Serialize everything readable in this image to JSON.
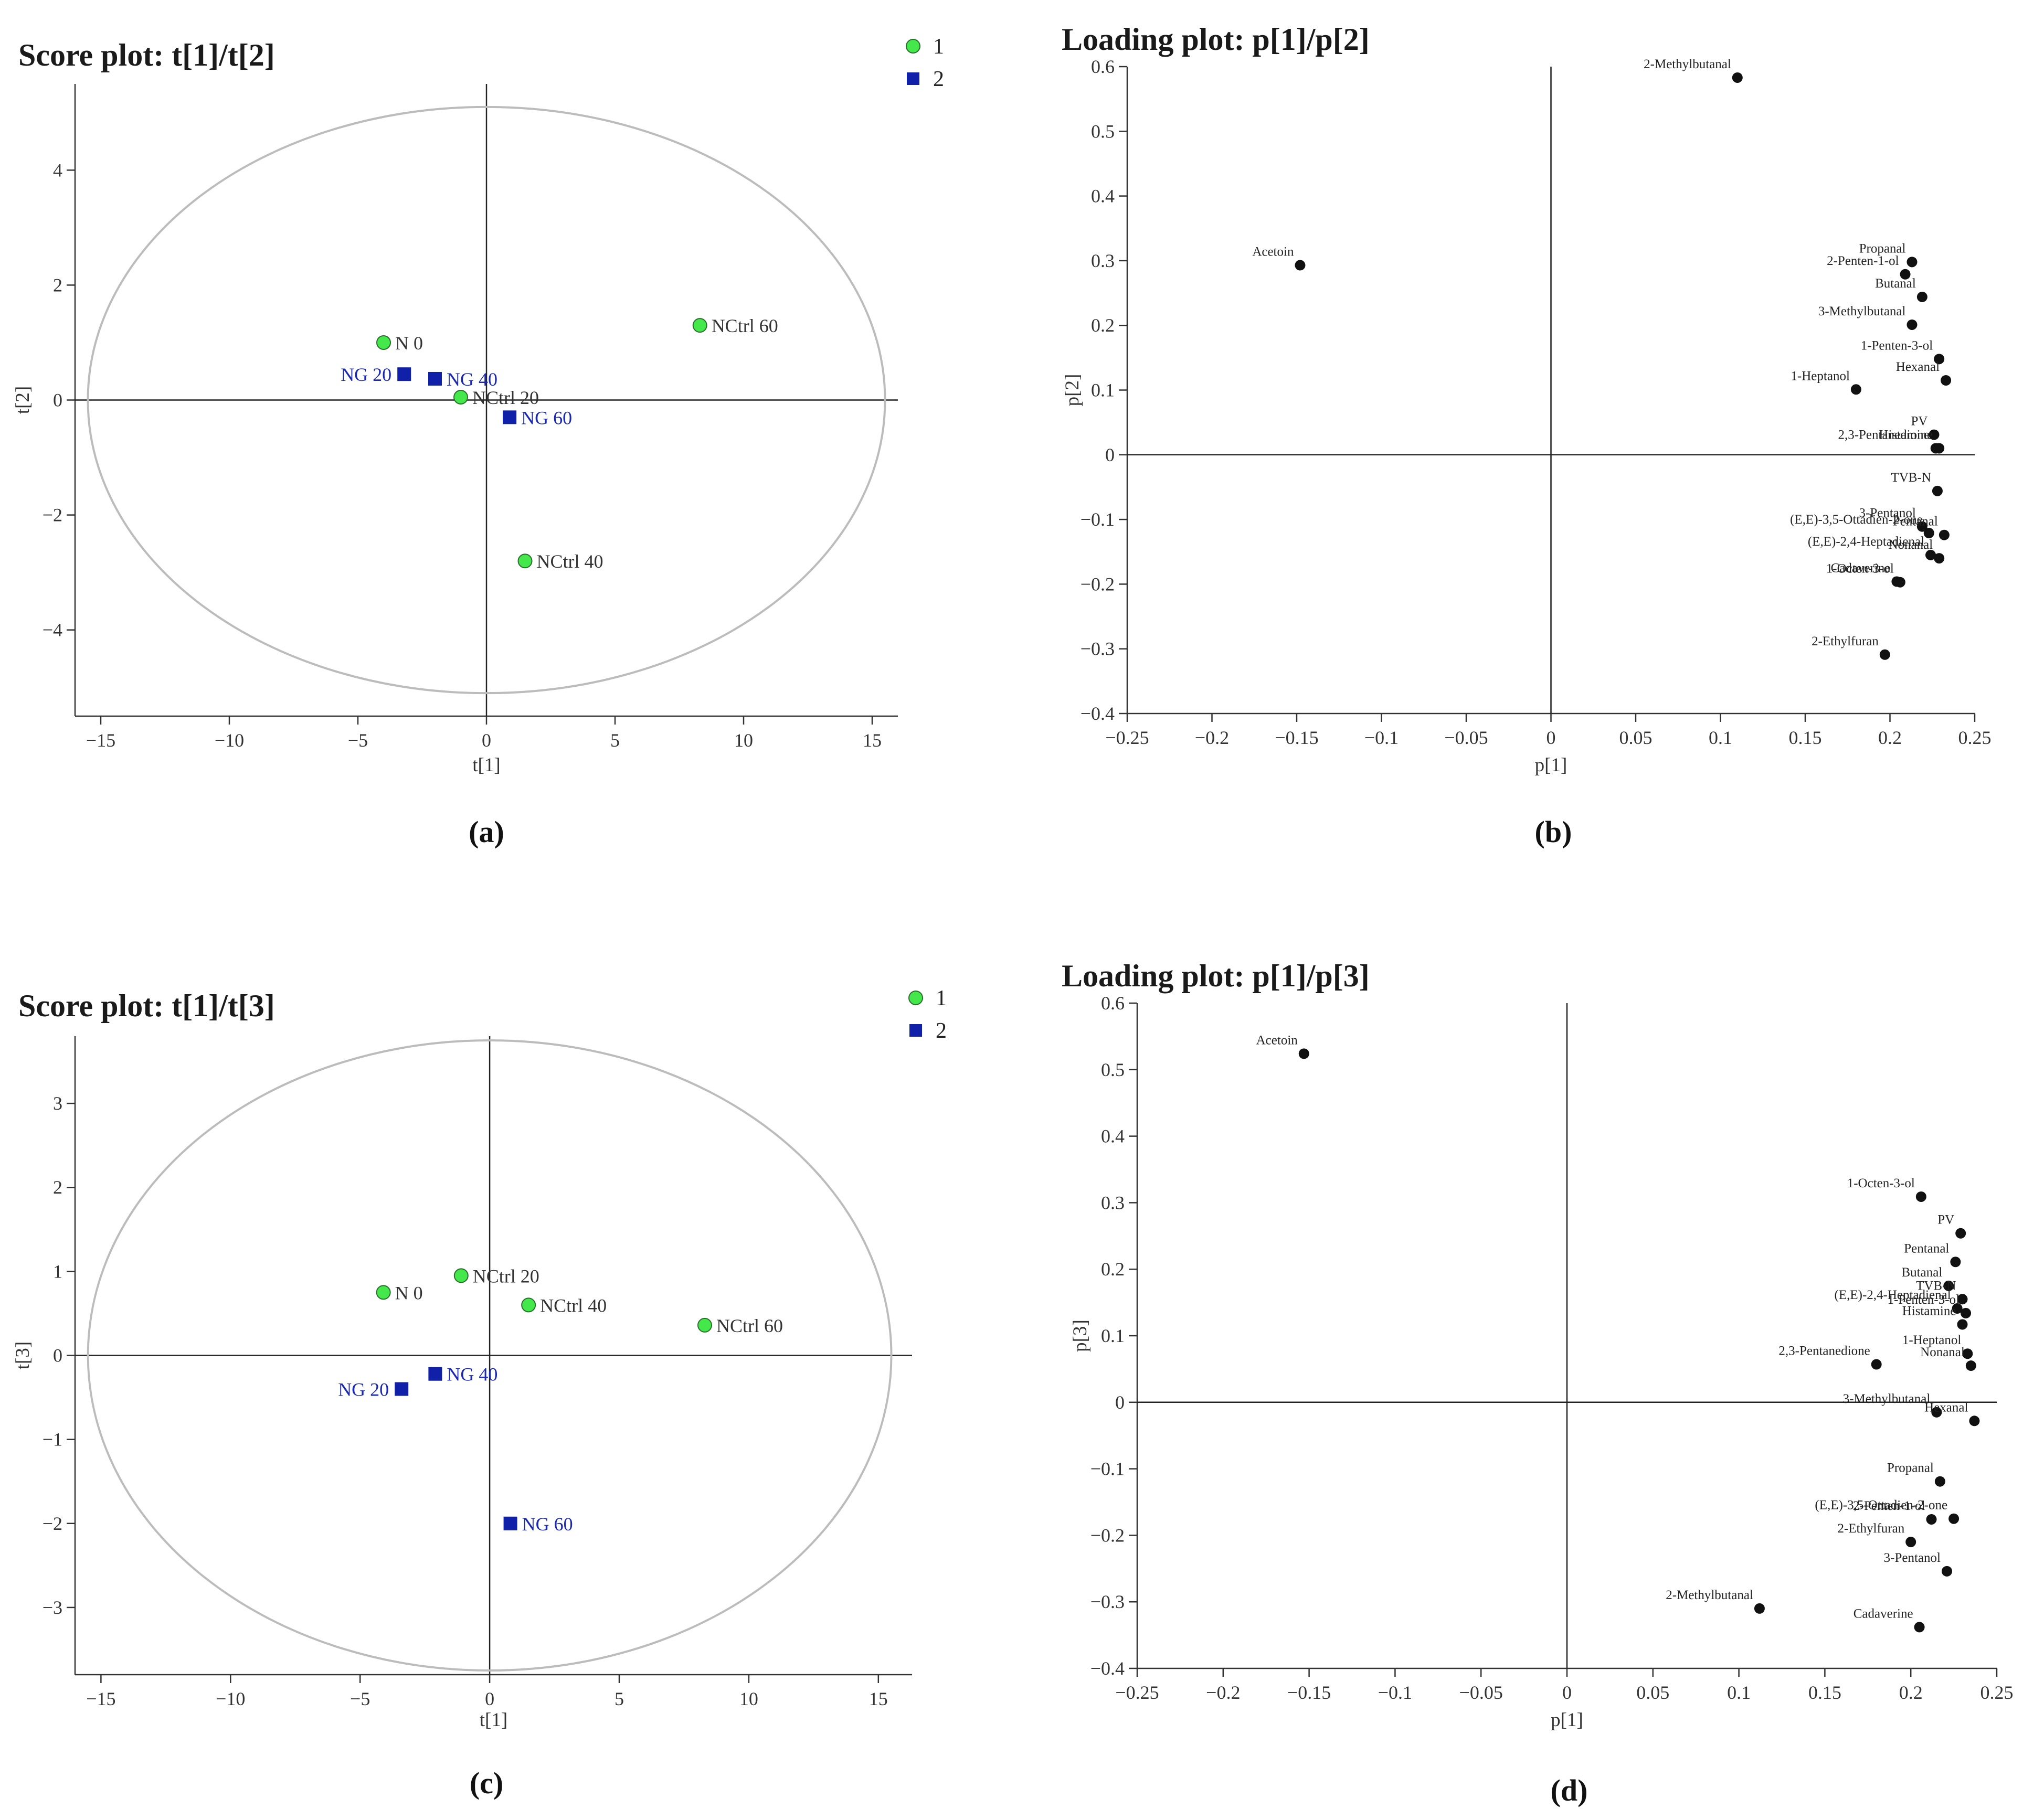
{
  "chart_data": [
    {
      "type": "scatter",
      "panel_label": "(a)",
      "title": "Score plot: t[1]/t[2]",
      "xlabel": "t[1]",
      "ylabel": "t[2]",
      "xlim": [
        -16,
        16
      ],
      "ylim": [
        -5.5,
        5.5
      ],
      "xticks": [
        -15,
        -10,
        -5,
        0,
        5,
        10,
        15
      ],
      "yticks": [
        -4,
        -2,
        0,
        2,
        4
      ],
      "ellipse": {
        "rx": 15.5,
        "ry": 5.1
      },
      "legend": {
        "position": "top-right",
        "entries": [
          "1",
          "2"
        ]
      },
      "series": [
        {
          "name": "1",
          "marker": "circle",
          "color": "#44e84a",
          "points": [
            {
              "label": "N   0",
              "x": -4.0,
              "y": 1.0
            },
            {
              "label": "NCtrl 20",
              "x": -1.0,
              "y": 0.05
            },
            {
              "label": "NCtrl 40",
              "x": 1.5,
              "y": -2.8
            },
            {
              "label": "NCtrl 60",
              "x": 8.3,
              "y": 1.3
            }
          ]
        },
        {
          "name": "2",
          "marker": "square",
          "color": "#1020a8",
          "points": [
            {
              "label": "NG  20",
              "x": -3.2,
              "y": 0.45
            },
            {
              "label": "NG  40",
              "x": -2.0,
              "y": 0.37
            },
            {
              "label": "NG  60",
              "x": 0.9,
              "y": -0.3
            }
          ]
        }
      ]
    },
    {
      "type": "scatter",
      "panel_label": "(b)",
      "title": "Loading plot: p[1]/p[2]",
      "xlabel": "p[1]",
      "ylabel": "p[2]",
      "xlim": [
        -0.25,
        0.25
      ],
      "ylim": [
        -0.4,
        0.6
      ],
      "xticks": [
        -0.25,
        -0.2,
        -0.15,
        -0.1,
        -0.05,
        0,
        0.05,
        0.1,
        0.15,
        0.2,
        0.25
      ],
      "yticks": [
        -0.4,
        -0.3,
        -0.2,
        -0.1,
        0,
        0.1,
        0.2,
        0.3,
        0.4,
        0.5,
        0.6
      ],
      "points": [
        {
          "label": "2-Methylbutanal",
          "x": 0.11,
          "y": 0.583
        },
        {
          "label": "Acetoin",
          "x": -0.148,
          "y": 0.293
        },
        {
          "label": "Propanal",
          "x": 0.213,
          "y": 0.298
        },
        {
          "label": "2-Penten-1-ol",
          "x": 0.209,
          "y": 0.279
        },
        {
          "label": "Butanal",
          "x": 0.219,
          "y": 0.244
        },
        {
          "label": "3-Methylbutanal",
          "x": 0.213,
          "y": 0.201
        },
        {
          "label": "1-Penten-3-ol",
          "x": 0.229,
          "y": 0.148
        },
        {
          "label": "Hexanal",
          "x": 0.233,
          "y": 0.115
        },
        {
          "label": "1-Heptanol",
          "x": 0.18,
          "y": 0.101
        },
        {
          "label": "PV",
          "x": 0.226,
          "y": 0.031
        },
        {
          "label": "Histamine",
          "x": 0.229,
          "y": 0.01
        },
        {
          "label": "2,3-Pentanedione",
          "x": 0.227,
          "y": 0.01
        },
        {
          "label": "TVB-N",
          "x": 0.228,
          "y": -0.056
        },
        {
          "label": "3-Pentanol",
          "x": 0.219,
          "y": -0.111
        },
        {
          "label": "(E,E)-3,5-Ottadien-2-one",
          "x": 0.223,
          "y": -0.121
        },
        {
          "label": "Pentanal",
          "x": 0.232,
          "y": -0.124
        },
        {
          "label": "(E,E)-2,4-Heptadienal",
          "x": 0.224,
          "y": -0.155
        },
        {
          "label": "Nonanal",
          "x": 0.229,
          "y": -0.16
        },
        {
          "label": "Cadaverine",
          "x": 0.204,
          "y": -0.196
        },
        {
          "label": "1-Octen-3-ol",
          "x": 0.206,
          "y": -0.197
        },
        {
          "label": "2-Ethylfuran",
          "x": 0.197,
          "y": -0.309
        }
      ]
    },
    {
      "type": "scatter",
      "panel_label": "(c)",
      "title": "Score plot: t[1]/t[3]",
      "xlabel": "t[1]",
      "ylabel": "t[3]",
      "xlim": [
        -16,
        16.3
      ],
      "ylim": [
        -3.8,
        3.8
      ],
      "xticks": [
        -15,
        -10,
        -5,
        0,
        5,
        10,
        15
      ],
      "yticks": [
        -3,
        -2,
        -1,
        0,
        1,
        2,
        3
      ],
      "ellipse": {
        "rx": 15.5,
        "ry": 3.75
      },
      "legend": {
        "position": "top-right",
        "entries": [
          "1",
          "2"
        ]
      },
      "series": [
        {
          "name": "1",
          "marker": "circle",
          "color": "#44e84a",
          "points": [
            {
              "label": "N   0",
              "x": -4.1,
              "y": 0.75
            },
            {
              "label": "NCtrl 20",
              "x": -1.1,
              "y": 0.95
            },
            {
              "label": "NCtrl 40",
              "x": 1.5,
              "y": 0.6
            },
            {
              "label": "NCtrl 60",
              "x": 8.3,
              "y": 0.36
            }
          ]
        },
        {
          "name": "2",
          "marker": "square",
          "color": "#1020a8",
          "points": [
            {
              "label": "NG  20",
              "x": -3.4,
              "y": -0.4
            },
            {
              "label": "NG  40",
              "x": -2.1,
              "y": -0.22
            },
            {
              "label": "NG  60",
              "x": 0.8,
              "y": -2.0
            }
          ]
        }
      ]
    },
    {
      "type": "scatter",
      "panel_label": "(d)",
      "title": "Loading plot: p[1]/p[3]",
      "xlabel": "p[1]",
      "ylabel": "p[3]",
      "xlim": [
        -0.25,
        0.25
      ],
      "ylim": [
        -0.4,
        0.6
      ],
      "xticks": [
        -0.25,
        -0.2,
        -0.15,
        -0.1,
        -0.05,
        0,
        0.05,
        0.1,
        0.15,
        0.2,
        0.25
      ],
      "yticks": [
        -0.4,
        -0.3,
        -0.2,
        -0.1,
        0,
        0.1,
        0.2,
        0.3,
        0.4,
        0.5,
        0.6
      ],
      "points": [
        {
          "label": "Acetoin",
          "x": -0.153,
          "y": 0.524
        },
        {
          "label": "1-Octen-3-ol",
          "x": 0.206,
          "y": 0.309
        },
        {
          "label": "PV",
          "x": 0.229,
          "y": 0.254
        },
        {
          "label": "Pentanal",
          "x": 0.226,
          "y": 0.211
        },
        {
          "label": "Butanal",
          "x": 0.222,
          "y": 0.175
        },
        {
          "label": "TVB-N",
          "x": 0.23,
          "y": 0.155
        },
        {
          "label": "(E,E)-2,4-Heptadienal",
          "x": 0.227,
          "y": 0.141
        },
        {
          "label": "1-Penten-3-ol",
          "x": 0.232,
          "y": 0.134
        },
        {
          "label": "Histamine",
          "x": 0.23,
          "y": 0.117
        },
        {
          "label": "1-Heptanol",
          "x": 0.233,
          "y": 0.073
        },
        {
          "label": "2,3-Pentanedione",
          "x": 0.18,
          "y": 0.057
        },
        {
          "label": "Nonanal",
          "x": 0.235,
          "y": 0.055
        },
        {
          "label": "3-Methylbutanal",
          "x": 0.215,
          "y": -0.015
        },
        {
          "label": "Hexanal",
          "x": 0.237,
          "y": -0.028
        },
        {
          "label": "Propanal",
          "x": 0.217,
          "y": -0.119
        },
        {
          "label": "(E,E)-3,5-Ottadien-2-one",
          "x": 0.225,
          "y": -0.175
        },
        {
          "label": "2-Penten-1-ol",
          "x": 0.212,
          "y": -0.176
        },
        {
          "label": "2-Ethylfuran",
          "x": 0.2,
          "y": -0.21
        },
        {
          "label": "3-Pentanol",
          "x": 0.221,
          "y": -0.254
        },
        {
          "label": "2-Methylbutanal",
          "x": 0.112,
          "y": -0.31
        },
        {
          "label": "Cadaverine",
          "x": 0.205,
          "y": -0.338
        }
      ]
    }
  ]
}
